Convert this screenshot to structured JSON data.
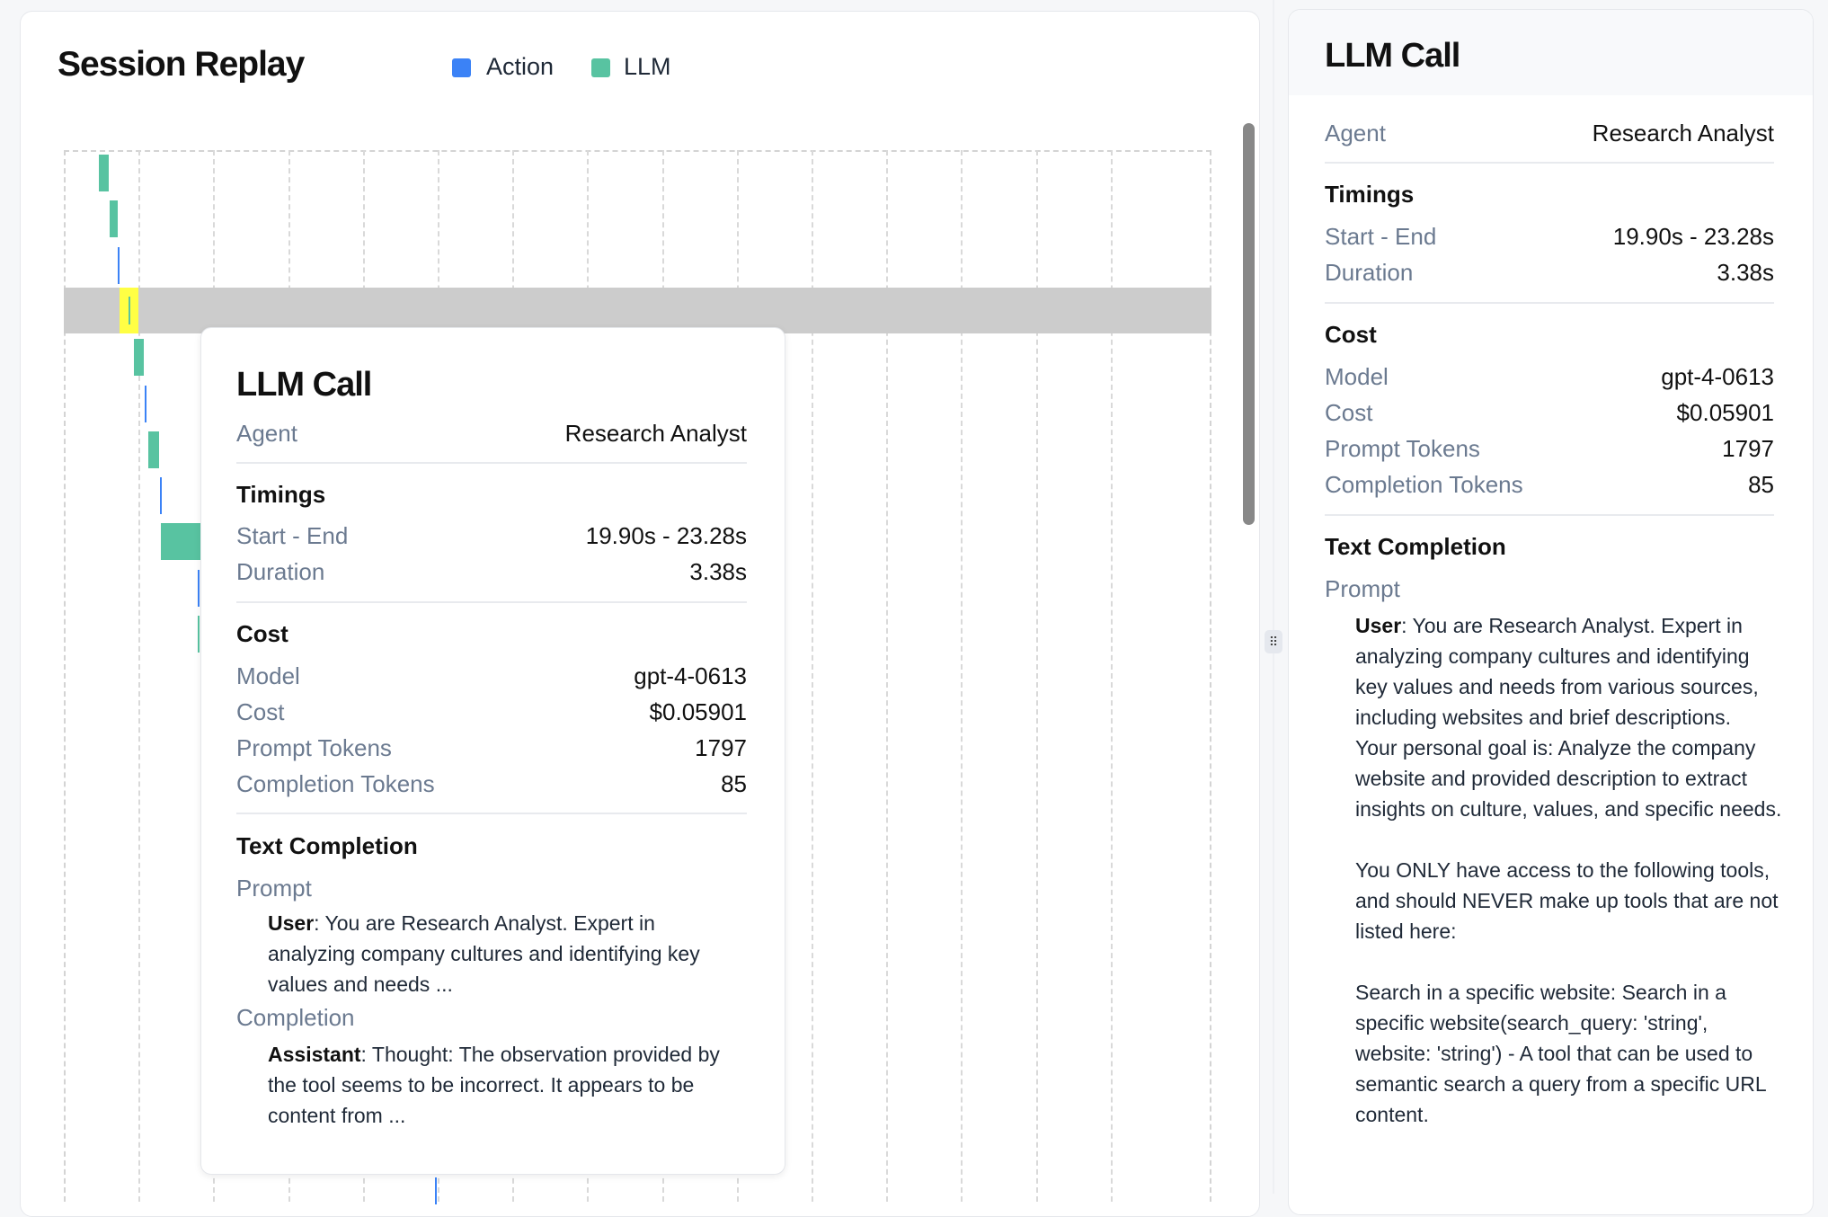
{
  "replay": {
    "title": "Session Replay",
    "legend": [
      {
        "label": "Action",
        "color": "#3b82f6"
      },
      {
        "label": "LLM",
        "color": "#58c3a1"
      }
    ],
    "events": [
      {
        "type": "LLM"
      },
      {
        "type": "LLM"
      },
      {
        "type": "Action"
      },
      {
        "type": "LLM",
        "selected": true
      },
      {
        "type": "LLM"
      },
      {
        "type": "Action"
      },
      {
        "type": "LLM"
      },
      {
        "type": "Action"
      },
      {
        "type": "LLM"
      },
      {
        "type": "Action"
      },
      {
        "type": "LLM"
      },
      {
        "type": "Action"
      }
    ],
    "highlight_color": "#ffff44",
    "row_highlight_color": "#cccccc"
  },
  "tooltip": {
    "title": "LLM Call",
    "agent_label": "Agent",
    "agent": "Research Analyst",
    "timings_heading": "Timings",
    "start_end_label": "Start - End",
    "start_end": "19.90s - 23.28s",
    "duration_label": "Duration",
    "duration": "3.38s",
    "cost_heading": "Cost",
    "model_label": "Model",
    "model": "gpt-4-0613",
    "cost_label": "Cost",
    "cost": "$0.05901",
    "prompt_tokens_label": "Prompt Tokens",
    "prompt_tokens": "1797",
    "completion_tokens_label": "Completion Tokens",
    "completion_tokens": "85",
    "text_completion_heading": "Text Completion",
    "prompt_label": "Prompt",
    "prompt_role": "User",
    "prompt_text": ": You are Research Analyst. Expert in analyzing company cultures and identifying key values and needs ...",
    "completion_label": "Completion",
    "completion_role": "Assistant",
    "completion_text": ": Thought: The observation provided by the tool seems to be incorrect. It appears to be content from ..."
  },
  "details": {
    "title": "LLM Call",
    "agent_label": "Agent",
    "agent": "Research Analyst",
    "timings_heading": "Timings",
    "start_end_label": "Start - End",
    "start_end": "19.90s - 23.28s",
    "duration_label": "Duration",
    "duration": "3.38s",
    "cost_heading": "Cost",
    "model_label": "Model",
    "model": "gpt-4-0613",
    "cost_label": "Cost",
    "cost": "$0.05901",
    "prompt_tokens_label": "Prompt Tokens",
    "prompt_tokens": "1797",
    "completion_tokens_label": "Completion Tokens",
    "completion_tokens": "85",
    "text_completion_heading": "Text Completion",
    "prompt_label": "Prompt",
    "prompt_role": "User",
    "prompt_text": ": You are Research Analyst. Expert in analyzing company cultures and identifying key values and needs from various sources, including websites and brief descriptions.\nYour personal goal is: Analyze the company website and provided description to extract insights on culture, values, and specific needs.\n\nYou ONLY have access to the following tools, and should NEVER make up tools that are not listed here:\n\nSearch in a specific website: Search in a specific website(search_query: 'string', website: 'string') - A tool that can be used to semantic search a query from a specific URL content."
  }
}
